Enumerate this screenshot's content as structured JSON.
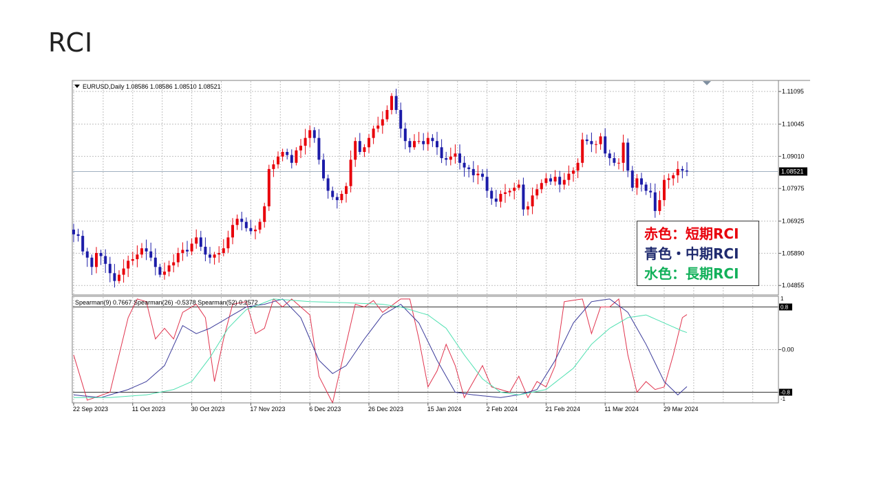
{
  "slide": {
    "title": "RCI"
  },
  "legend_note": {
    "lines": [
      {
        "text": "赤色：短期RCI",
        "color": "#e8000b"
      },
      {
        "text": "青色・中期RCI",
        "color": "#1f2a6e"
      },
      {
        "text": "水色：長期RCI",
        "color": "#12b05a"
      }
    ]
  },
  "colors": {
    "up_candle": "#e8000b",
    "down_candle": "#1c1ca8",
    "rci_short": "#e0334d",
    "rci_mid": "#3a3a9a",
    "rci_long": "#4ee0b0",
    "grid": "#bfbfbf"
  },
  "chart_data": [
    {
      "type": "candlestick",
      "header": "EURUSD,Daily  1.08586 1.08586 1.08510 1.08521",
      "current_price_label": "1.08521",
      "current_price": 1.08521,
      "y_ticks": [
        1.11095,
        1.10045,
        1.0901,
        1.07975,
        1.06925,
        1.0589,
        1.04855
      ],
      "y_tick_labels": [
        "1.11095",
        "1.10045",
        "1.09010",
        "1.07975",
        "1.06925",
        "1.05890",
        "1.04855"
      ],
      "ylim": [
        1.0455,
        1.1145
      ],
      "x_labels": [
        "22 Sep 2023",
        "11 Oct 2023",
        "30 Oct 2023",
        "17 Nov 2023",
        "6 Dec 2023",
        "26 Dec 2023",
        "15 Jan 2024",
        "2 Feb 2024",
        "21 Feb 2024",
        "11 Mar 2024",
        "29 Mar 2024"
      ],
      "closes": [
        1.065,
        1.0645,
        1.0595,
        1.0575,
        1.0545,
        1.059,
        1.058,
        1.0555,
        1.0525,
        1.05,
        1.052,
        1.054,
        1.0565,
        1.057,
        1.0585,
        1.0605,
        1.0595,
        1.0575,
        1.0545,
        1.052,
        1.053,
        1.055,
        1.056,
        1.059,
        1.06,
        1.0595,
        1.062,
        1.064,
        1.061,
        1.0585,
        1.0575,
        1.0585,
        1.059,
        1.0605,
        1.064,
        1.068,
        1.07,
        1.069,
        1.067,
        1.066,
        1.0665,
        1.069,
        1.074,
        1.086,
        1.0875,
        1.09,
        1.0915,
        1.0905,
        1.088,
        1.092,
        1.0935,
        1.096,
        1.0985,
        1.096,
        1.089,
        1.083,
        1.079,
        1.077,
        1.076,
        1.078,
        1.0805,
        1.089,
        1.095,
        1.0915,
        1.093,
        1.096,
        1.099,
        1.1,
        1.102,
        1.105,
        1.1095,
        1.105,
        1.099,
        1.095,
        1.093,
        1.095,
        1.095,
        1.094,
        1.096,
        1.095,
        1.093,
        1.0895,
        1.089,
        1.09,
        1.091,
        1.088,
        1.0865,
        1.086,
        1.084,
        1.0845,
        1.0835,
        1.079,
        1.0765,
        1.0755,
        1.078,
        1.0785,
        1.079,
        1.08,
        1.081,
        1.073,
        1.074,
        1.0775,
        1.0795,
        1.0815,
        1.083,
        1.082,
        1.0835,
        1.081,
        1.0825,
        1.0845,
        1.0855,
        1.088,
        1.0955,
        1.095,
        1.094,
        1.094,
        1.0965,
        1.091,
        1.0895,
        1.088,
        1.088,
        1.0945,
        1.0855,
        1.08,
        1.083,
        1.081,
        1.079,
        1.0785,
        1.0725,
        1.076,
        1.0825,
        1.083,
        1.084,
        1.086,
        1.0855,
        1.0852
      ],
      "opens_first": 1.0665
    },
    {
      "type": "line",
      "header": "Spearman(9) 0.7667  Spearman(26) -0.5378  Spearman(52) 0.2572",
      "ylim": [
        -1,
        1
      ],
      "y_ticks": [
        0.8,
        0.0,
        -0.8
      ],
      "y_tick_labels": [
        "0.8",
        "0.00",
        "-0.8"
      ],
      "edge_labels": [
        "1",
        "-1"
      ],
      "series": [
        {
          "name": "Spearman(9)",
          "last_value": 0.7667,
          "key": "rci_short",
          "keyframes": [
            [
              0,
              -0.1
            ],
            [
              3,
              -0.95
            ],
            [
              8,
              -0.8
            ],
            [
              12,
              0.6
            ],
            [
              14,
              0.95
            ],
            [
              16,
              0.9
            ],
            [
              18,
              0.2
            ],
            [
              20,
              0.4
            ],
            [
              22,
              0.2
            ],
            [
              24,
              0.7
            ],
            [
              27,
              0.85
            ],
            [
              29,
              0.6
            ],
            [
              31,
              -0.6
            ],
            [
              33,
              0.2
            ],
            [
              35,
              0.85
            ],
            [
              38,
              0.9
            ],
            [
              40,
              0.3
            ],
            [
              42,
              0.4
            ],
            [
              44,
              0.95
            ],
            [
              46,
              0.8
            ],
            [
              48,
              0.95
            ],
            [
              52,
              0.65
            ],
            [
              54,
              -0.5
            ],
            [
              57,
              -1
            ],
            [
              62,
              0.85
            ],
            [
              64,
              0.8
            ],
            [
              66,
              0.92
            ],
            [
              68,
              0.7
            ],
            [
              72,
              0.95
            ],
            [
              74,
              0.95
            ],
            [
              76,
              0.2
            ],
            [
              78,
              -0.7
            ],
            [
              80,
              -0.4
            ],
            [
              82,
              0.1
            ],
            [
              84,
              -0.3
            ],
            [
              86,
              -0.9
            ],
            [
              88,
              -0.6
            ],
            [
              90,
              -0.3
            ],
            [
              92,
              -0.7
            ],
            [
              96,
              -0.8
            ],
            [
              98,
              -0.5
            ],
            [
              100,
              -0.9
            ],
            [
              102,
              -0.6
            ],
            [
              104,
              -0.7
            ],
            [
              106,
              -0.3
            ],
            [
              108,
              0.9
            ],
            [
              112,
              0.95
            ],
            [
              114,
              0.3
            ],
            [
              116,
              0.8
            ],
            [
              118,
              0.8
            ],
            [
              120,
              0.95
            ],
            [
              122,
              -0.1
            ],
            [
              124,
              -0.8
            ],
            [
              126,
              -0.6
            ],
            [
              128,
              -0.75
            ],
            [
              130,
              -0.7
            ],
            [
              132,
              -0.1
            ],
            [
              134,
              0.6
            ],
            [
              137,
              0.77
            ]
          ]
        },
        {
          "name": "Spearman(26)",
          "last_value": -0.5378,
          "key": "rci_mid",
          "keyframes": [
            [
              0,
              -0.85
            ],
            [
              6,
              -0.9
            ],
            [
              12,
              -0.75
            ],
            [
              16,
              -0.6
            ],
            [
              20,
              -0.3
            ],
            [
              24,
              0.45
            ],
            [
              27,
              0.3
            ],
            [
              30,
              0.4
            ],
            [
              34,
              0.6
            ],
            [
              38,
              0.8
            ],
            [
              42,
              0.85
            ],
            [
              46,
              0.95
            ],
            [
              50,
              0.6
            ],
            [
              54,
              -0.2
            ],
            [
              57,
              -0.45
            ],
            [
              60,
              -0.3
            ],
            [
              64,
              0.2
            ],
            [
              68,
              0.65
            ],
            [
              72,
              0.85
            ],
            [
              76,
              0.5
            ],
            [
              80,
              -0.2
            ],
            [
              84,
              -0.8
            ],
            [
              88,
              -0.85
            ],
            [
              94,
              -0.9
            ],
            [
              98,
              -0.85
            ],
            [
              102,
              -0.75
            ],
            [
              106,
              -0.2
            ],
            [
              110,
              0.5
            ],
            [
              114,
              0.9
            ],
            [
              118,
              0.95
            ],
            [
              122,
              0.7
            ],
            [
              126,
              0.1
            ],
            [
              130,
              -0.6
            ],
            [
              133,
              -0.85
            ],
            [
              137,
              -0.54
            ]
          ]
        },
        {
          "name": "Spearman(52)",
          "last_value": 0.2572,
          "key": "rci_long",
          "keyframes": [
            [
              0,
              -0.9
            ],
            [
              8,
              -0.9
            ],
            [
              16,
              -0.85
            ],
            [
              22,
              -0.75
            ],
            [
              26,
              -0.6
            ],
            [
              30,
              -0.15
            ],
            [
              34,
              0.4
            ],
            [
              38,
              0.75
            ],
            [
              44,
              0.95
            ],
            [
              52,
              0.9
            ],
            [
              60,
              0.88
            ],
            [
              68,
              0.85
            ],
            [
              72,
              0.8
            ],
            [
              78,
              0.65
            ],
            [
              82,
              0.4
            ],
            [
              86,
              -0.1
            ],
            [
              90,
              -0.55
            ],
            [
              94,
              -0.8
            ],
            [
              98,
              -0.85
            ],
            [
              104,
              -0.75
            ],
            [
              110,
              -0.35
            ],
            [
              114,
              0.1
            ],
            [
              118,
              0.4
            ],
            [
              122,
              0.6
            ],
            [
              126,
              0.65
            ],
            [
              130,
              0.5
            ],
            [
              134,
              0.35
            ],
            [
              137,
              0.26
            ]
          ]
        }
      ]
    }
  ]
}
